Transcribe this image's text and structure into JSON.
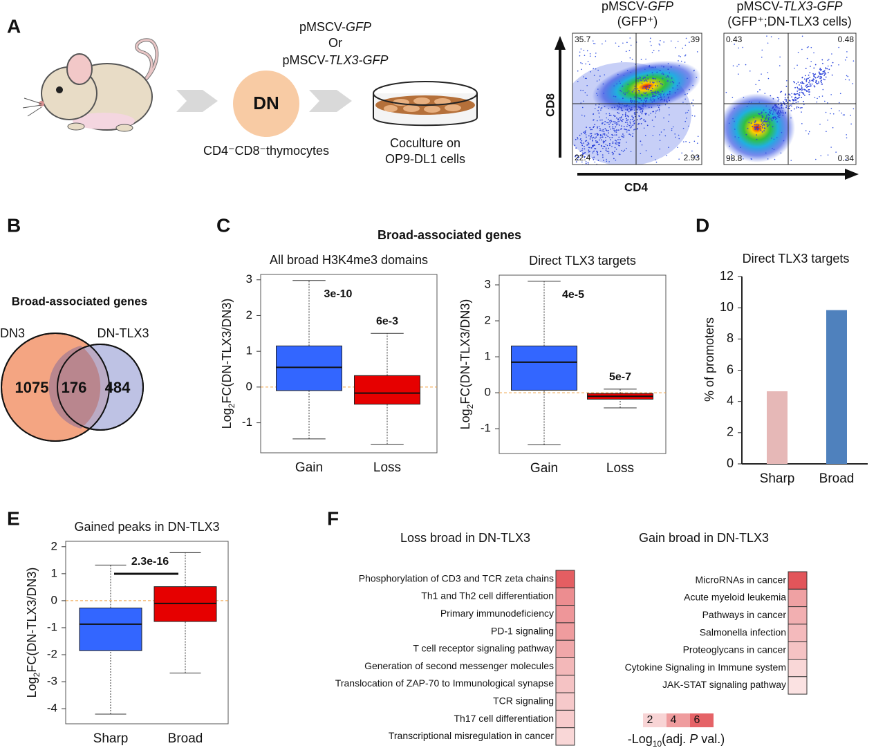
{
  "panel_labels": [
    "A",
    "B",
    "C",
    "D",
    "E",
    "F"
  ],
  "A": {
    "vector_gfp": [
      "pMSCV-",
      "GFP"
    ],
    "or": "Or",
    "vector_tlx3": [
      "pMSCV-",
      "TLX3-GFP"
    ],
    "cell": "DN",
    "cell_label": "CD4⁻CD8⁻thymocytes",
    "coculture": [
      "Coculture on",
      "OP9-DL1 cells"
    ],
    "flow": {
      "x_label": "CD4",
      "y_label": "CD8",
      "plots": [
        {
          "title": [
            "pMSCV-",
            "GFP"
          ],
          "subtitle": "(GFP⁺)",
          "quadrants": {
            "top_left": 35.7,
            "top_right": 39,
            "bottom_left": 22.4,
            "bottom_right": 2.93
          }
        },
        {
          "title": [
            "pMSCV-",
            "TLX3-GFP"
          ],
          "subtitle": "(GFP⁺;DN-TLX3 cells)",
          "quadrants": {
            "top_left": 0.43,
            "top_right": 0.48,
            "bottom_left": 98.8,
            "bottom_right": 0.34
          }
        }
      ]
    }
  },
  "B": {
    "title": "Broad-associated genes",
    "sets": [
      "DN3",
      "DN-TLX3"
    ],
    "only_first": 1075,
    "overlap": 176,
    "only_second": 484
  },
  "C": {
    "title": "Broad-associated genes",
    "plots": [
      {
        "type": "box",
        "title": "All broad H3K4me3 domains",
        "y_label": [
          "Log",
          "2",
          "FC(DN-TLX3/DN3)"
        ],
        "categories": [
          "Gain",
          "Loss"
        ],
        "colors": [
          "#3366ff",
          "#e60000"
        ],
        "whislo": [
          -1.45,
          -1.6
        ],
        "q1": [
          -0.1,
          -0.48
        ],
        "median": [
          0.55,
          -0.17
        ],
        "q3": [
          1.15,
          0.32
        ],
        "whishi": [
          2.98,
          1.5
        ],
        "annotations": [
          "3e-10",
          "6e-3"
        ],
        "ref_line": 0,
        "ylim": [
          -1.84,
          3.15
        ],
        "yticks": [
          -1,
          0,
          1,
          2,
          3
        ]
      },
      {
        "type": "box",
        "title": "Direct TLX3 targets",
        "y_label": [
          "Log",
          "2",
          "FC(DN-TLX3/DN3)"
        ],
        "categories": [
          "Gain",
          "Loss"
        ],
        "colors": [
          "#3366ff",
          "#e60000"
        ],
        "whislo": [
          -1.45,
          -0.42
        ],
        "q1": [
          0.07,
          -0.18
        ],
        "median": [
          0.85,
          -0.1
        ],
        "q3": [
          1.3,
          -0.02
        ],
        "whishi": [
          3.1,
          0.1
        ],
        "annotations": [
          "4e-5",
          "5e-7"
        ],
        "ref_line": 0,
        "ylim": [
          -1.69,
          3.27
        ],
        "yticks": [
          -1,
          0,
          1,
          2,
          3
        ]
      }
    ]
  },
  "D": {
    "type": "bar",
    "title": "Direct TLX3 targets",
    "y_label": "% of promoters",
    "categories": [
      "Sharp",
      "Broad"
    ],
    "values": [
      4.65,
      9.85
    ],
    "colors": [
      "#e6b8b7",
      "#4f81bd"
    ],
    "ylim": [
      0,
      12
    ],
    "yticks": [
      0,
      2,
      4,
      6,
      8,
      10,
      12
    ]
  },
  "E": {
    "type": "box",
    "title": "Gained peaks in DN-TLX3",
    "y_label": [
      "Log",
      "2",
      "FC(DN-TLX3/DN3)"
    ],
    "categories": [
      "Sharp",
      "Broad"
    ],
    "colors": [
      "#3366ff",
      "#e60000"
    ],
    "whislo": [
      -4.2,
      -2.68
    ],
    "q1": [
      -1.85,
      -0.77
    ],
    "median": [
      -0.87,
      -0.1
    ],
    "q3": [
      -0.27,
      0.52
    ],
    "whishi": [
      1.32,
      1.78
    ],
    "annotation": "2.3e-16",
    "ref_line": 0,
    "ylim": [
      -4.56,
      2.2
    ],
    "yticks": [
      -4,
      -3,
      -2,
      -1,
      0,
      1,
      2
    ]
  },
  "F": {
    "type": "heatmap",
    "clim": [
      1,
      7
    ],
    "colorbar_ticks": [
      2,
      4,
      6
    ],
    "colorbar_label": [
      "-Log",
      "10",
      "(adj. ",
      "P",
      " val.)"
    ],
    "panels": [
      {
        "title": "Loss broad in DN-TLX3",
        "terms": [
          "Phosphorylation of CD3 and TCR zeta chains",
          "Th1 and Th2 cell differentiation",
          "Primary immunodeficiency",
          "PD-1 signaling",
          "T cell receptor signaling pathway",
          "Generation of second messenger molecules",
          "Translocation of ZAP-70 to Immunological synapse",
          "TCR signaling",
          "Th17 cell differentiation",
          "Transcriptional misregulation in cancer"
        ],
        "values": [
          6.2,
          4.5,
          4.2,
          4.0,
          3.6,
          3.0,
          2.6,
          2.4,
          2.3,
          1.9
        ]
      },
      {
        "title": "Gain broad in DN-TLX3",
        "terms": [
          "MicroRNAs in cancer",
          "Acute myeloid leukemia",
          "Pathways in cancer",
          "Salmonella infection",
          "Proteoglycans in cancer",
          "Cytokine Signaling in Immune system",
          "JAK-STAT signaling pathway"
        ],
        "values": [
          6.5,
          3.8,
          3.3,
          2.9,
          2.6,
          1.9,
          1.5
        ]
      }
    ]
  }
}
